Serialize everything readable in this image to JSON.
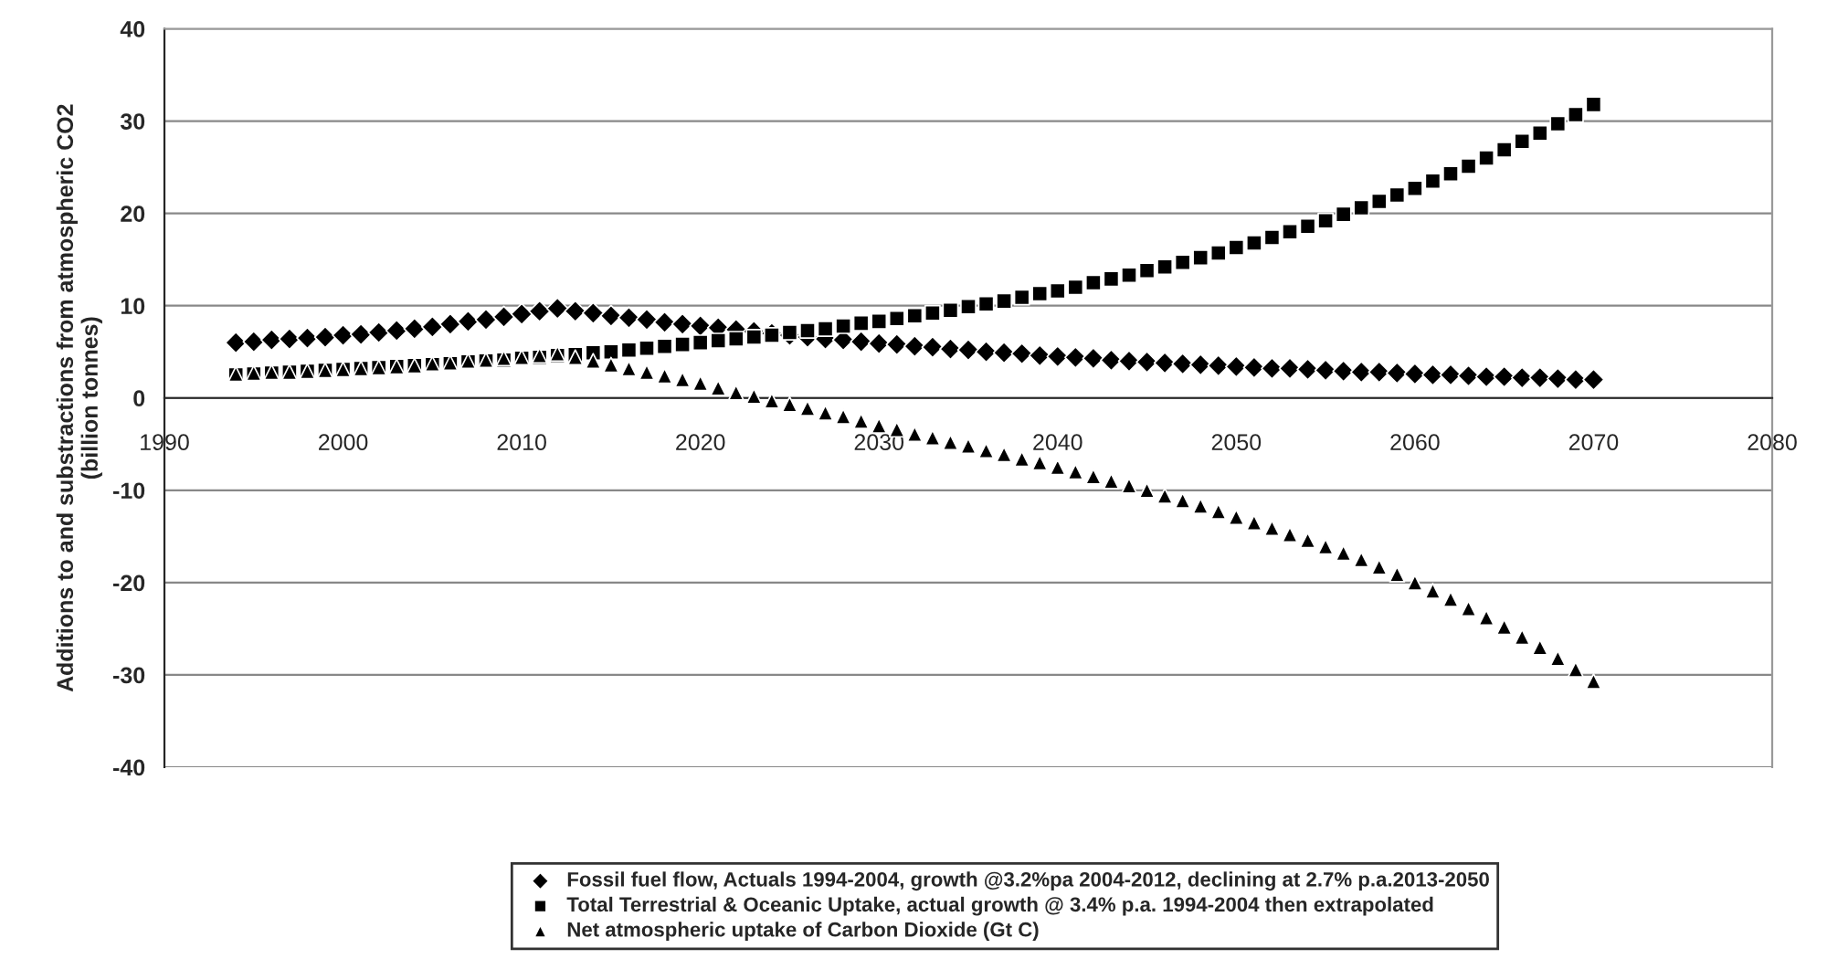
{
  "chart_data": {
    "type": "scatter",
    "ylabel": "Additions to and substractions from atmospheric CO2\n(billion tonnes)",
    "x": [
      1994,
      1995,
      1996,
      1997,
      1998,
      1999,
      2000,
      2001,
      2002,
      2003,
      2004,
      2005,
      2006,
      2007,
      2008,
      2009,
      2010,
      2011,
      2012,
      2013,
      2014,
      2015,
      2016,
      2017,
      2018,
      2019,
      2020,
      2021,
      2022,
      2023,
      2024,
      2025,
      2026,
      2027,
      2028,
      2029,
      2030,
      2031,
      2032,
      2033,
      2034,
      2035,
      2036,
      2037,
      2038,
      2039,
      2040,
      2041,
      2042,
      2043,
      2044,
      2045,
      2046,
      2047,
      2048,
      2049,
      2050,
      2051,
      2052,
      2053,
      2054,
      2055,
      2056,
      2057,
      2058,
      2059,
      2060,
      2061,
      2062,
      2063,
      2064,
      2065,
      2066,
      2067,
      2068,
      2069,
      2070
    ],
    "series": [
      {
        "name": "Fossil fuel flow, Actuals 1994-2004, growth @3.2%pa 2004-2012, declining at 2.7% p.a.2013-2050",
        "color": "#000000",
        "marker": "diamond",
        "values": [
          6.0,
          6.1,
          6.3,
          6.4,
          6.5,
          6.6,
          6.8,
          6.9,
          7.1,
          7.3,
          7.5,
          7.7,
          8.0,
          8.3,
          8.5,
          8.8,
          9.1,
          9.4,
          9.7,
          9.4,
          9.2,
          8.9,
          8.7,
          8.5,
          8.2,
          8.0,
          7.8,
          7.6,
          7.4,
          7.2,
          7.0,
          6.8,
          6.6,
          6.4,
          6.3,
          6.1,
          5.9,
          5.8,
          5.6,
          5.5,
          5.3,
          5.2,
          5.0,
          4.9,
          4.8,
          4.6,
          4.5,
          4.4,
          4.3,
          4.1,
          4.0,
          3.9,
          3.8,
          3.7,
          3.6,
          3.5,
          3.4,
          3.3,
          3.2,
          3.2,
          3.1,
          3.0,
          2.9,
          2.8,
          2.8,
          2.7,
          2.6,
          2.5,
          2.5,
          2.4,
          2.3,
          2.3,
          2.2,
          2.2,
          2.1,
          2.0,
          2.0
        ]
      },
      {
        "name": "Total Terrestrial & Oceanic Uptake, actual growth @ 3.4% p.a. 1994-2004 then extrapolated",
        "color": "#000000",
        "marker": "square",
        "values": [
          2.5,
          2.6,
          2.7,
          2.8,
          2.9,
          3.0,
          3.1,
          3.2,
          3.3,
          3.4,
          3.5,
          3.6,
          3.7,
          3.9,
          4.0,
          4.1,
          4.3,
          4.4,
          4.6,
          4.7,
          4.9,
          5.0,
          5.2,
          5.4,
          5.6,
          5.8,
          6.0,
          6.2,
          6.4,
          6.6,
          6.8,
          7.1,
          7.3,
          7.5,
          7.8,
          8.1,
          8.3,
          8.6,
          8.9,
          9.2,
          9.5,
          9.9,
          10.2,
          10.5,
          10.9,
          11.3,
          11.6,
          12.0,
          12.5,
          12.9,
          13.3,
          13.8,
          14.2,
          14.7,
          15.2,
          15.7,
          16.3,
          16.8,
          17.4,
          18.0,
          18.6,
          19.2,
          19.9,
          20.6,
          21.3,
          22.0,
          22.7,
          23.5,
          24.3,
          25.1,
          26.0,
          26.9,
          27.8,
          28.7,
          29.7,
          30.7,
          31.8
        ]
      },
      {
        "name": "Net atmospheric uptake of Carbon Dioxide (Gt C)",
        "color": "#000000",
        "marker": "triangle",
        "values": [
          2.6,
          2.7,
          2.8,
          2.8,
          2.9,
          3.0,
          3.1,
          3.2,
          3.3,
          3.4,
          3.5,
          3.7,
          3.8,
          4.0,
          4.1,
          4.3,
          4.4,
          4.6,
          4.8,
          4.4,
          4.0,
          3.6,
          3.2,
          2.8,
          2.4,
          2.0,
          1.6,
          1.1,
          0.6,
          0.2,
          -0.3,
          -0.7,
          -1.1,
          -1.6,
          -2.0,
          -2.5,
          -3.0,
          -3.4,
          -3.9,
          -4.3,
          -4.8,
          -5.2,
          -5.7,
          -6.1,
          -6.6,
          -7.0,
          -7.5,
          -8.0,
          -8.5,
          -9.0,
          -9.5,
          -10.0,
          -10.6,
          -11.1,
          -11.7,
          -12.3,
          -12.9,
          -13.5,
          -14.1,
          -14.8,
          -15.4,
          -16.1,
          -16.8,
          -17.5,
          -18.3,
          -19.1,
          -20.0,
          -20.9,
          -21.8,
          -22.8,
          -23.8,
          -24.8,
          -25.9,
          -27.0,
          -28.2,
          -29.4,
          -30.7
        ]
      }
    ],
    "xlim": [
      1990,
      2080
    ],
    "xticks": [
      1990,
      2000,
      2010,
      2020,
      2030,
      2040,
      2050,
      2060,
      2070,
      2080
    ],
    "ylim": [
      -40,
      40
    ],
    "yticks": [
      -40,
      -30,
      -20,
      -10,
      0,
      10,
      20,
      30,
      40
    ],
    "grid": "y",
    "legend": "bottom"
  }
}
